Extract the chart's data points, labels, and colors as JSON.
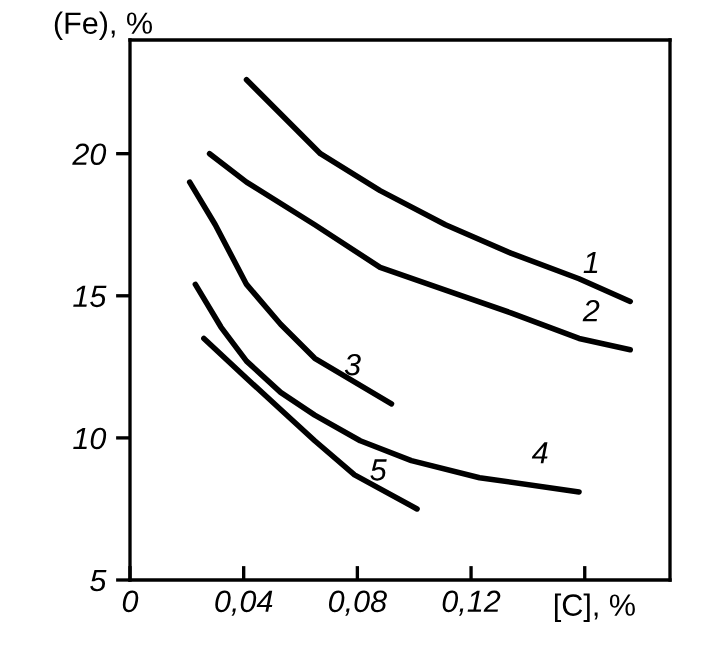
{
  "chart_data": {
    "type": "line",
    "xlabel": "[C], %",
    "ylabel": "(Fe), %",
    "xlim": [
      0,
      0.19
    ],
    "ylim": [
      5,
      24
    ],
    "xticks": [
      0,
      {
        "value": 0.04,
        "label": "0,04"
      },
      {
        "value": 0.08,
        "label": "0,08"
      },
      {
        "value": 0.12,
        "label": "0,12"
      },
      {
        "value": 0.16,
        "label": null
      }
    ],
    "yticks": [
      5,
      10,
      15,
      20
    ],
    "grid": false,
    "legend": false,
    "marker": "none",
    "line_style": "solid",
    "series": [
      {
        "name": "1",
        "color": "#000000",
        "x": [
          0.041,
          0.067,
          0.088,
          0.111,
          0.134,
          0.158,
          0.176
        ],
        "values": [
          22.6,
          20.0,
          18.7,
          17.5,
          16.5,
          15.6,
          14.8
        ]
      },
      {
        "name": "2",
        "color": "#000000",
        "x": [
          0.028,
          0.041,
          0.065,
          0.088,
          0.111,
          0.134,
          0.158,
          0.176
        ],
        "values": [
          20.0,
          19.0,
          17.5,
          16.0,
          15.2,
          14.4,
          13.5,
          13.1
        ]
      },
      {
        "name": "3",
        "color": "#000000",
        "x": [
          0.021,
          0.03,
          0.041,
          0.053,
          0.065,
          0.092
        ],
        "values": [
          19.0,
          17.5,
          15.4,
          14.0,
          12.8,
          11.2
        ]
      },
      {
        "name": "4",
        "color": "#000000",
        "x": [
          0.023,
          0.032,
          0.041,
          0.053,
          0.065,
          0.081,
          0.099,
          0.123,
          0.158
        ],
        "values": [
          15.4,
          13.9,
          12.7,
          11.6,
          10.8,
          9.9,
          9.2,
          8.6,
          8.1
        ]
      },
      {
        "name": "5",
        "color": "#000000",
        "x": [
          0.026,
          0.041,
          0.053,
          0.065,
          0.079,
          0.101
        ],
        "values": [
          13.5,
          12.1,
          11.0,
          9.9,
          8.7,
          7.5
        ]
      }
    ]
  }
}
